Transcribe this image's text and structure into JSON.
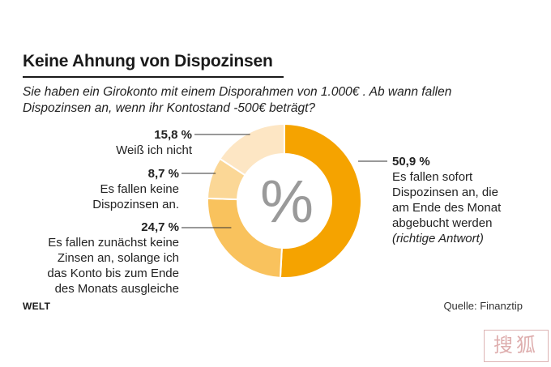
{
  "header": {
    "title": "Keine Ahnung von Dispozinsen",
    "subtitle": "Sie haben ein Girokonto mit einem Disporahmen von 1.000€ . Ab wann fallen Dispozinsen an, wenn ihr Kontostand -500€ beträgt?"
  },
  "center_symbol": "%",
  "labels": [
    {
      "pct": "50,9 %",
      "lines": [
        "Es fallen sofort",
        "Dispozinsen an, die",
        "am Ende des Monat",
        "abgebucht werden"
      ],
      "note": "(richtige Antwort)"
    },
    {
      "pct": "24,7 %",
      "lines": [
        "Es fallen zunächst keine",
        "Zinsen an, solange ich",
        "das Konto bis zum Ende",
        "des Monats ausgleiche"
      ]
    },
    {
      "pct": "8,7 %",
      "lines": [
        "Es fallen keine",
        "Dispozinsen an."
      ]
    },
    {
      "pct": "15,8 %",
      "lines": [
        "Weiß ich nicht"
      ]
    }
  ],
  "footer": {
    "brand": "WELT",
    "source": "Quelle: Finanztip",
    "watermark": "搜狐"
  },
  "chart_data": {
    "type": "pie",
    "variant": "donut",
    "title": "Keine Ahnung von Dispozinsen",
    "categories": [
      "Es fallen sofort Dispozinsen an, die am Ende des Monat abgebucht werden (richtige Antwort)",
      "Es fallen zunächst keine Zinsen an, solange ich das Konto bis zum Ende des Monats ausgleiche",
      "Es fallen keine Dispozinsen an.",
      "Weiß ich nicht"
    ],
    "values": [
      50.9,
      24.7,
      8.7,
      15.8
    ],
    "colors": [
      "#f5a300",
      "#f9c25d",
      "#fbd796",
      "#fde6c4"
    ],
    "start": "top, clockwise"
  }
}
